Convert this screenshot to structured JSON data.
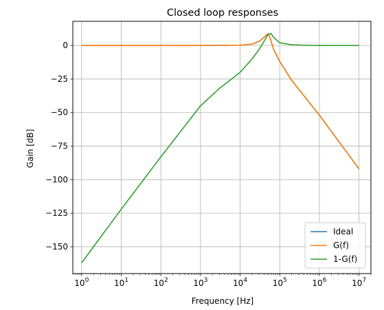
{
  "chart_data": {
    "type": "line",
    "title": "Closed loop responses",
    "xlabel": "Frequency [Hz]",
    "ylabel": "Gain [dB]",
    "xscale": "log",
    "xlim": [
      0.6,
      20000000
    ],
    "ylim": [
      -170,
      18
    ],
    "grid": true,
    "legend_position": "bottom-right",
    "x_ticks": [
      {
        "value": 1,
        "base": "10",
        "exp": "0"
      },
      {
        "value": 10,
        "base": "10",
        "exp": "1"
      },
      {
        "value": 100,
        "base": "10",
        "exp": "2"
      },
      {
        "value": 1000,
        "base": "10",
        "exp": "3"
      },
      {
        "value": 10000,
        "base": "10",
        "exp": "4"
      },
      {
        "value": 100000,
        "base": "10",
        "exp": "5"
      },
      {
        "value": 1000000,
        "base": "10",
        "exp": "6"
      },
      {
        "value": 10000000,
        "base": "10",
        "exp": "7"
      }
    ],
    "y_ticks": [
      {
        "value": 0,
        "label": "0"
      },
      {
        "value": -25,
        "label": "−25"
      },
      {
        "value": -50,
        "label": "−50"
      },
      {
        "value": -75,
        "label": "−75"
      },
      {
        "value": -100,
        "label": "−100"
      },
      {
        "value": -125,
        "label": "−125"
      },
      {
        "value": -150,
        "label": "−150"
      }
    ],
    "series": [
      {
        "name": "Ideal",
        "color": "#1f77b4",
        "x": [
          1,
          10,
          100,
          1000,
          10000,
          20000,
          30000,
          40000,
          50000,
          55000,
          70000,
          100000,
          200000,
          1000000,
          10000000
        ],
        "y": [
          0,
          0,
          0,
          0,
          0.2,
          1,
          3,
          6,
          8.8,
          7,
          -3,
          -12,
          -26,
          -52,
          -92
        ]
      },
      {
        "name": "G(f)",
        "color": "#ff7f0e",
        "x": [
          1,
          10,
          100,
          1000,
          10000,
          20000,
          30000,
          40000,
          50000,
          55000,
          70000,
          100000,
          200000,
          1000000,
          10000000
        ],
        "y": [
          0,
          0,
          0,
          0,
          0.2,
          1,
          3,
          6,
          8.8,
          7,
          -3,
          -12,
          -26,
          -52,
          -92
        ]
      },
      {
        "name": "1-G(f)",
        "color": "#2ca02c",
        "x": [
          1,
          10,
          100,
          1000,
          3000,
          10000,
          20000,
          30000,
          40000,
          50000,
          60000,
          70000,
          100000,
          200000,
          500000,
          1000000,
          10000000
        ],
        "y": [
          -162,
          -122,
          -83,
          -45,
          -32,
          -20,
          -10,
          -3,
          3,
          8,
          9,
          6,
          2,
          0.5,
          0.1,
          0,
          0
        ]
      }
    ]
  }
}
